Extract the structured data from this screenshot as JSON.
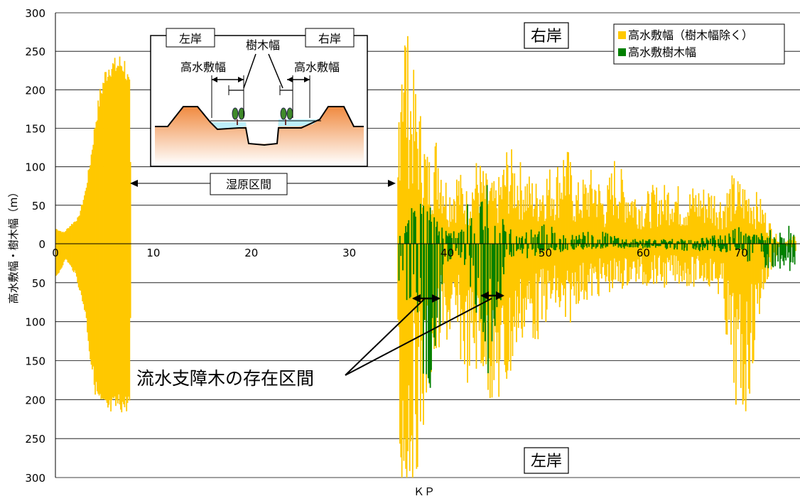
{
  "chart_data": {
    "type": "bar",
    "xlabel": "ＫＰ",
    "ylabel": "高水敷幅・樹木幅（m）",
    "xlim": [
      0,
      76
    ],
    "ylim_upper": [
      0,
      300
    ],
    "ylim_lower": [
      0,
      300
    ],
    "x_ticks": [
      "0",
      "10",
      "20",
      "30",
      "40",
      "50",
      "60",
      "70"
    ],
    "y_ticks_upper": [
      "300",
      "250",
      "200",
      "150",
      "100",
      "50",
      "0"
    ],
    "y_ticks_lower": [
      "50",
      "100",
      "150",
      "200",
      "250",
      "300"
    ],
    "grid": true,
    "legend_position": "top-right",
    "legend": [
      {
        "label": "高水敷幅（樹木幅除く）",
        "color": "#FFC800"
      },
      {
        "label": "高水敷樹木幅",
        "color": "#008000"
      }
    ],
    "bank_labels": {
      "upper": "右岸",
      "lower": "左岸"
    },
    "section_label": "湿原区間",
    "section_range": [
      7.7,
      34.8
    ],
    "callout": "流水支障木の存在区間",
    "tree_sections": [
      [
        37.2,
        39.2
      ],
      [
        44.3,
        46.3
      ]
    ],
    "inset": {
      "left_bank": "左岸",
      "right_bank": "右岸",
      "tree_width": "樹木幅",
      "hw_left": "高水敷幅",
      "hw_right": "高水敷幅"
    },
    "series": [
      {
        "name": "高水敷幅（樹木幅除く）",
        "bank": "右岸",
        "points": [
          [
            0,
            20
          ],
          [
            0.8,
            15
          ],
          [
            1.5,
            25
          ],
          [
            2.3,
            35
          ],
          [
            3,
            70
          ],
          [
            3.5,
            110
          ],
          [
            4,
            160
          ],
          [
            4.5,
            200
          ],
          [
            5,
            225
          ],
          [
            5.5,
            240
          ],
          [
            6,
            238
          ],
          [
            6.5,
            243
          ],
          [
            7,
            240
          ],
          [
            7.5,
            210
          ],
          [
            7.7,
            0
          ],
          [
            34.8,
            0
          ],
          [
            35,
            180
          ],
          [
            35.3,
            300
          ],
          [
            36,
            200
          ],
          [
            37,
            150
          ],
          [
            38,
            90
          ],
          [
            39,
            120
          ],
          [
            40,
            60
          ],
          [
            41,
            80
          ],
          [
            42,
            55
          ],
          [
            43,
            90
          ],
          [
            44,
            70
          ],
          [
            45,
            60
          ],
          [
            46,
            100
          ],
          [
            47,
            90
          ],
          [
            48,
            75
          ],
          [
            49,
            65
          ],
          [
            50,
            80
          ],
          [
            51,
            80
          ],
          [
            52,
            110
          ],
          [
            53,
            60
          ],
          [
            54,
            70
          ],
          [
            55,
            80
          ],
          [
            56,
            50
          ],
          [
            57,
            90
          ],
          [
            58,
            70
          ],
          [
            59,
            60
          ],
          [
            60,
            50
          ],
          [
            61,
            60
          ],
          [
            62,
            60
          ],
          [
            63,
            70
          ],
          [
            64,
            50
          ],
          [
            65,
            60
          ],
          [
            66,
            60
          ],
          [
            67,
            60
          ],
          [
            68,
            50
          ],
          [
            69,
            70
          ],
          [
            70,
            65
          ],
          [
            71,
            60
          ],
          [
            72,
            45
          ],
          [
            73,
            20
          ],
          [
            74,
            0
          ],
          [
            75.5,
            10
          ]
        ]
      },
      {
        "name": "高水敷幅（樹木幅除く）",
        "bank": "左岸",
        "points": [
          [
            0,
            45
          ],
          [
            1,
            20
          ],
          [
            2,
            40
          ],
          [
            3,
            90
          ],
          [
            3.5,
            150
          ],
          [
            4,
            190
          ],
          [
            4.5,
            210
          ],
          [
            5,
            218
          ],
          [
            5.5,
            220
          ],
          [
            6,
            215
          ],
          [
            6.5,
            212
          ],
          [
            7,
            215
          ],
          [
            7.5,
            210
          ],
          [
            7.7,
            0
          ],
          [
            34.8,
            0
          ],
          [
            35,
            200
          ],
          [
            35.3,
            300
          ],
          [
            36,
            250
          ],
          [
            37,
            220
          ],
          [
            38,
            160
          ],
          [
            39,
            120
          ],
          [
            40,
            100
          ],
          [
            41,
            110
          ],
          [
            42,
            140
          ],
          [
            43,
            130
          ],
          [
            44,
            150
          ],
          [
            45,
            170
          ],
          [
            46,
            160
          ],
          [
            47,
            110
          ],
          [
            48,
            90
          ],
          [
            49,
            100
          ],
          [
            50,
            80
          ],
          [
            51,
            70
          ],
          [
            52,
            100
          ],
          [
            53,
            60
          ],
          [
            54,
            60
          ],
          [
            55,
            55
          ],
          [
            56,
            50
          ],
          [
            57,
            50
          ],
          [
            58,
            45
          ],
          [
            59,
            40
          ],
          [
            60,
            45
          ],
          [
            61,
            40
          ],
          [
            62,
            45
          ],
          [
            63,
            40
          ],
          [
            64,
            40
          ],
          [
            65,
            45
          ],
          [
            66,
            40
          ],
          [
            67,
            45
          ],
          [
            68,
            60
          ],
          [
            69,
            150
          ],
          [
            70,
            190
          ],
          [
            71,
            140
          ],
          [
            72,
            60
          ],
          [
            73,
            30
          ],
          [
            74,
            0
          ],
          [
            75.5,
            15
          ]
        ]
      },
      {
        "name": "高水敷樹木幅",
        "bank": "右岸",
        "points": [
          [
            35,
            20
          ],
          [
            36,
            30
          ],
          [
            37,
            50
          ],
          [
            38,
            40
          ],
          [
            39,
            25
          ],
          [
            40,
            10
          ],
          [
            41,
            20
          ],
          [
            42,
            40
          ],
          [
            43,
            30
          ],
          [
            44,
            60
          ],
          [
            45,
            40
          ],
          [
            46,
            20
          ],
          [
            47,
            10
          ],
          [
            48,
            15
          ],
          [
            50,
            20
          ],
          [
            52,
            10
          ],
          [
            55,
            15
          ],
          [
            58,
            5
          ],
          [
            60,
            5
          ],
          [
            65,
            5
          ],
          [
            68,
            10
          ],
          [
            70,
            20
          ],
          [
            71,
            10
          ],
          [
            75.5,
            20
          ]
        ]
      },
      {
        "name": "高水敷樹木幅",
        "bank": "左岸",
        "points": [
          [
            35,
            40
          ],
          [
            36,
            60
          ],
          [
            37,
            90
          ],
          [
            38,
            170
          ],
          [
            39,
            100
          ],
          [
            40,
            20
          ],
          [
            41,
            10
          ],
          [
            42,
            30
          ],
          [
            43,
            80
          ],
          [
            44,
            130
          ],
          [
            45,
            110
          ],
          [
            46,
            20
          ],
          [
            47,
            10
          ],
          [
            48,
            15
          ],
          [
            50,
            10
          ],
          [
            55,
            5
          ],
          [
            60,
            5
          ],
          [
            70,
            10
          ],
          [
            71,
            25
          ],
          [
            75.5,
            30
          ]
        ]
      }
    ]
  }
}
